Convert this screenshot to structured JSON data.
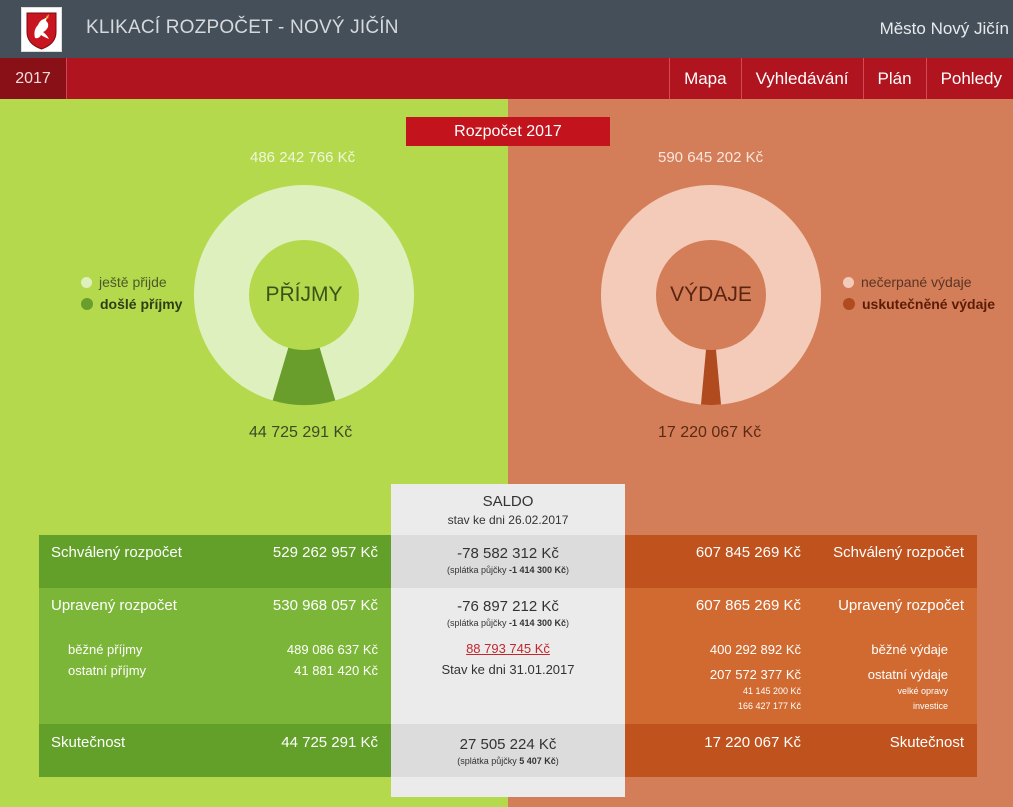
{
  "header": {
    "title": "KLIKACÍ ROZPOČET - NOVÝ JIČÍN",
    "city": "Město Nový Jičín"
  },
  "nav": {
    "year": "2017",
    "items": [
      "Mapa",
      "Vyhledávání",
      "Plán",
      "Pohledy"
    ]
  },
  "budget_label": "Rozpočet 2017",
  "income": {
    "total": "486 242 766 Kč",
    "received": "44 725 291 Kč",
    "center_label": "PŘÍJMY",
    "received_fraction": 0.092,
    "legend": [
      "ještě přijde",
      "došlé příjmy"
    ],
    "colors": {
      "ring": "#def0bd",
      "inner": "#b4d94d",
      "slice": "#6a9e2c"
    }
  },
  "expense": {
    "total": "590 645 202 Kč",
    "spent": "17 220 067 Kč",
    "center_label": "VÝDAJE",
    "spent_fraction": 0.029,
    "legend": [
      "nečerpané výdaje",
      "uskutečněné výdaje"
    ],
    "colors": {
      "ring": "#f3cbb8",
      "inner": "#d47e59",
      "slice": "#b04a1f"
    }
  },
  "saldo": {
    "title": "SALDO",
    "as_of": "stav ke dni 26.02.2017"
  },
  "rows": {
    "approved": {
      "left_label": "Schválený rozpočet",
      "left_value": "529 262 957 Kč",
      "saldo": "-78 582 312 Kč",
      "saldo_note_prefix": "(splátka půjčky ",
      "saldo_note_bold": "-1 414 300 Kč",
      "saldo_note_suffix": ")",
      "right_value": "607 845 269 Kč",
      "right_label": "Schválený rozpočet"
    },
    "adjusted": {
      "left_label": "Upravený rozpočet",
      "left_value": "530 968 057 Kč",
      "saldo": "-76 897 212 Kč",
      "saldo_note_prefix": "(splátka půjčky ",
      "saldo_note_bold": "-1 414 300 Kč",
      "saldo_note_suffix": ")",
      "right_value": "607 865 269 Kč",
      "right_label": "Upravený rozpočet",
      "left_sub": [
        {
          "label": "běžné příjmy",
          "value": "489 086 637 Kč"
        },
        {
          "label": "ostatní příjmy",
          "value": "41 881 420 Kč"
        }
      ],
      "balance_link": "88 793 745 Kč",
      "balance_date": "Stav ke dni 31.01.2017",
      "right_sub": [
        {
          "label": "běžné výdaje",
          "value": "400 292 892 Kč"
        },
        {
          "label": "ostatní výdaje",
          "value": "207 572 377 Kč"
        }
      ],
      "right_detail": [
        {
          "label": "velké opravy",
          "value": "41 145 200 Kč"
        },
        {
          "label": "investice",
          "value": "166 427 177 Kč"
        }
      ]
    },
    "actual": {
      "left_label": "Skutečnost",
      "left_value": "44 725 291 Kč",
      "saldo": "27 505 224 Kč",
      "saldo_note_prefix": "(splátka půjčky ",
      "saldo_note_bold": "5 407 Kč",
      "saldo_note_suffix": ")",
      "right_value": "17 220 067 Kč",
      "right_label": "Skutečnost"
    }
  }
}
